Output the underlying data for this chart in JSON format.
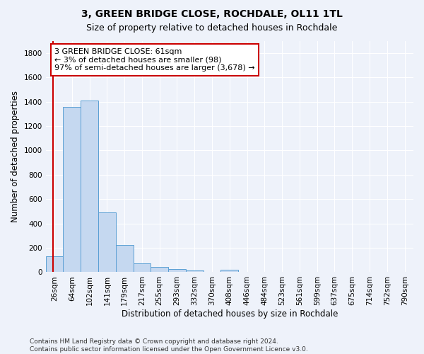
{
  "title1": "3, GREEN BRIDGE CLOSE, ROCHDALE, OL11 1TL",
  "title2": "Size of property relative to detached houses in Rochdale",
  "xlabel": "Distribution of detached houses by size in Rochdale",
  "ylabel": "Number of detached properties",
  "bar_labels": [
    "26sqm",
    "64sqm",
    "102sqm",
    "141sqm",
    "179sqm",
    "217sqm",
    "255sqm",
    "293sqm",
    "332sqm",
    "370sqm",
    "408sqm",
    "446sqm",
    "484sqm",
    "523sqm",
    "561sqm",
    "599sqm",
    "637sqm",
    "675sqm",
    "714sqm",
    "752sqm",
    "790sqm"
  ],
  "bar_values": [
    130,
    1355,
    1410,
    490,
    225,
    75,
    45,
    28,
    15,
    0,
    20,
    0,
    0,
    0,
    0,
    0,
    0,
    0,
    0,
    0,
    0
  ],
  "bar_color": "#c5d8f0",
  "bar_edge_color": "#5a9fd4",
  "highlight_color": "#cc0000",
  "annotation_title": "3 GREEN BRIDGE CLOSE: 61sqm",
  "annotation_line1": "← 3% of detached houses are smaller (98)",
  "annotation_line2": "97% of semi-detached houses are larger (3,678) →",
  "annotation_box_color": "#ffffff",
  "annotation_box_edge": "#cc0000",
  "vline_x": -0.08,
  "ylim": [
    0,
    1900
  ],
  "yticks": [
    0,
    200,
    400,
    600,
    800,
    1000,
    1200,
    1400,
    1600,
    1800
  ],
  "footer": "Contains HM Land Registry data © Crown copyright and database right 2024.\nContains public sector information licensed under the Open Government Licence v3.0.",
  "background_color": "#eef2fa",
  "grid_color": "#ffffff",
  "title_fontsize": 10,
  "subtitle_fontsize": 9,
  "axis_label_fontsize": 8.5,
  "tick_fontsize": 7.5,
  "footer_fontsize": 6.5
}
